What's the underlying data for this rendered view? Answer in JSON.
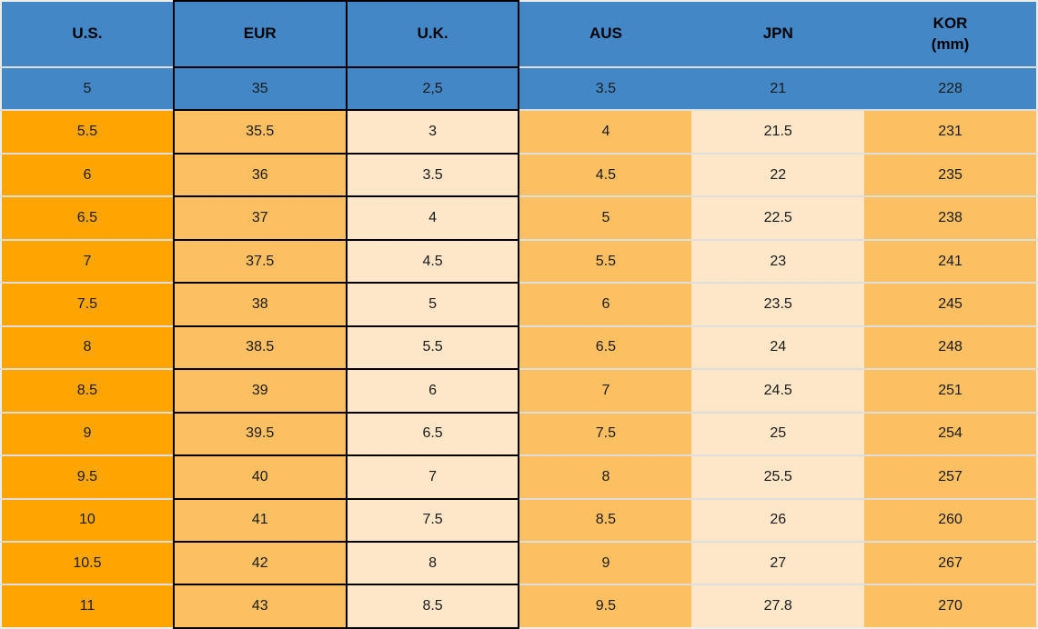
{
  "chart_data": {
    "type": "table",
    "columns": [
      {
        "key": "us",
        "label": "U.S."
      },
      {
        "key": "eur",
        "label": "EUR"
      },
      {
        "key": "uk",
        "label": "U.K."
      },
      {
        "key": "aus",
        "label": "AUS"
      },
      {
        "key": "jpn",
        "label": "JPN"
      },
      {
        "key": "kor",
        "label": "KOR",
        "sublabel": "(mm)"
      }
    ],
    "rows": [
      [
        "5",
        "35",
        "2,5",
        "3.5",
        "21",
        "228"
      ],
      [
        "5.5",
        "35.5",
        "3",
        "4",
        "21.5",
        "231"
      ],
      [
        "6",
        "36",
        "3.5",
        "4.5",
        "22",
        "235"
      ],
      [
        "6.5",
        "37",
        "4",
        "5",
        "22.5",
        "238"
      ],
      [
        "7",
        "37.5",
        "4.5",
        "5.5",
        "23",
        "241"
      ],
      [
        "7.5",
        "38",
        "5",
        "6",
        "23.5",
        "245"
      ],
      [
        "8",
        "38.5",
        "5.5",
        "6.5",
        "24",
        "248"
      ],
      [
        "8.5",
        "39",
        "6",
        "7",
        "24.5",
        "251"
      ],
      [
        "9",
        "39.5",
        "6.5",
        "7.5",
        "25",
        "254"
      ],
      [
        "9.5",
        "40",
        "7",
        "8",
        "25.5",
        "257"
      ],
      [
        "10",
        "41",
        "7.5",
        "8.5",
        "26",
        "260"
      ],
      [
        "10.5",
        "42",
        "8",
        "9",
        "27",
        "267"
      ],
      [
        "11",
        "43",
        "8.5",
        "9.5",
        "27.8",
        "270"
      ]
    ],
    "highlighted_row_index": 0,
    "dark_grid_columns": [
      "eur",
      "uk"
    ]
  },
  "colors": {
    "header_background": "#4387C6",
    "highlight_row_background": "#4387C6",
    "us_column_orange": "#FFA502",
    "accent_orange": "#FCBF62",
    "accent_cream": "#FDE7C8",
    "grid_dark": "#000000",
    "grid_light": "#E0DEDA",
    "header_text": "#000000",
    "cell_text": "#1A1A1A"
  }
}
